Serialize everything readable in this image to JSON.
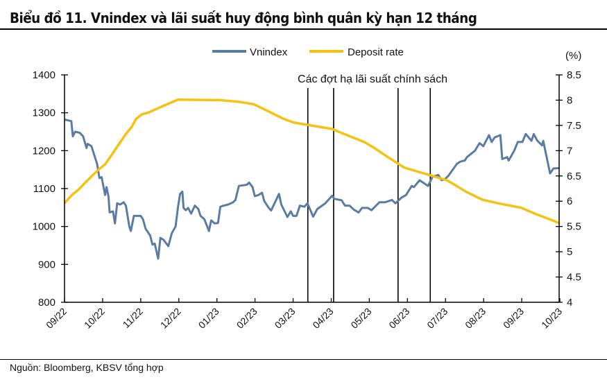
{
  "title": "Biểu đồ 11. Vnindex và lãi suất huy động bình quân kỳ hạn 12 tháng",
  "footer": "Nguồn: Bloomberg, KBSV tổng hợp",
  "chart_data": {
    "type": "line",
    "title": "Biểu đồ 11. Vnindex và lãi suất huy động bình quân kỳ hạn 12 tháng",
    "x_unit": "months since start of 09/2022",
    "xlim": [
      0,
      13.05
    ],
    "x_tick_labels": [
      "09/22",
      "10/22",
      "11/22",
      "12/22",
      "01/23",
      "02/23",
      "03/23",
      "04/23",
      "05/23",
      "06/23",
      "07/23",
      "08/23",
      "09/23",
      "10/23"
    ],
    "y_left": {
      "ylim": [
        800,
        1400
      ],
      "ticks": [
        800,
        900,
        1000,
        1100,
        1200,
        1300,
        1400
      ]
    },
    "y_right": {
      "label": "(%)",
      "ylim": [
        4,
        8.5
      ],
      "ticks": [
        "4",
        "4.5",
        "5",
        "5.5",
        "6",
        "6.5",
        "7",
        "7.5",
        "8",
        "8.5"
      ]
    },
    "legend": {
      "placement": "top-center",
      "entries": [
        "Vnindex",
        "Deposit rate"
      ]
    },
    "colors": {
      "Vnindex": "#5a7ca3",
      "Deposit rate": "#f5c211"
    },
    "annotation": {
      "text": "Các đợt hạ lãi suất chính sách",
      "policy_cut_x": [
        6.42,
        7.1,
        8.8,
        9.65
      ]
    },
    "series": [
      {
        "name": "Vnindex",
        "axis": "left",
        "points": [
          [
            0.01,
            1282
          ],
          [
            0.18,
            1278
          ],
          [
            0.22,
            1238
          ],
          [
            0.28,
            1250
          ],
          [
            0.4,
            1247
          ],
          [
            0.49,
            1238
          ],
          [
            0.58,
            1207
          ],
          [
            0.61,
            1218
          ],
          [
            0.71,
            1212
          ],
          [
            0.86,
            1165
          ],
          [
            0.92,
            1128
          ],
          [
            0.98,
            1130
          ],
          [
            1.07,
            1083
          ],
          [
            1.11,
            1104
          ],
          [
            1.16,
            1079
          ],
          [
            1.19,
            1037
          ],
          [
            1.28,
            1040
          ],
          [
            1.33,
            1008
          ],
          [
            1.39,
            1061
          ],
          [
            1.47,
            1058
          ],
          [
            1.56,
            1064
          ],
          [
            1.62,
            1055
          ],
          [
            1.71,
            1000
          ],
          [
            1.75,
            988
          ],
          [
            1.83,
            1028
          ],
          [
            2.01,
            1028
          ],
          [
            2.07,
            1019
          ],
          [
            2.14,
            994
          ],
          [
            2.26,
            976
          ],
          [
            2.32,
            952
          ],
          [
            2.38,
            955
          ],
          [
            2.47,
            915
          ],
          [
            2.53,
            970
          ],
          [
            2.62,
            964
          ],
          [
            2.74,
            948
          ],
          [
            2.83,
            982
          ],
          [
            2.93,
            1000
          ],
          [
            2.99,
            1049
          ],
          [
            3.05,
            1086
          ],
          [
            3.11,
            1092
          ],
          [
            3.14,
            1049
          ],
          [
            3.2,
            1043
          ],
          [
            3.26,
            1049
          ],
          [
            3.34,
            1034
          ],
          [
            3.44,
            1055
          ],
          [
            3.53,
            1046
          ],
          [
            3.59,
            1028
          ],
          [
            3.69,
            1019
          ],
          [
            3.81,
            988
          ],
          [
            3.87,
            1016
          ],
          [
            3.96,
            1008
          ],
          [
            4.05,
            1009
          ],
          [
            4.11,
            1052
          ],
          [
            4.2,
            1055
          ],
          [
            4.32,
            1058
          ],
          [
            4.45,
            1064
          ],
          [
            4.51,
            1070
          ],
          [
            4.6,
            1107
          ],
          [
            4.81,
            1110
          ],
          [
            4.87,
            1116
          ],
          [
            4.96,
            1104
          ],
          [
            5.02,
            1080
          ],
          [
            5.12,
            1083
          ],
          [
            5.21,
            1089
          ],
          [
            5.27,
            1067
          ],
          [
            5.39,
            1049
          ],
          [
            5.45,
            1042
          ],
          [
            5.66,
            1086
          ],
          [
            5.72,
            1058
          ],
          [
            5.88,
            1025
          ],
          [
            5.97,
            1040
          ],
          [
            6.03,
            1028
          ],
          [
            6.12,
            1028
          ],
          [
            6.21,
            1055
          ],
          [
            6.33,
            1052
          ],
          [
            6.41,
            1061
          ],
          [
            6.56,
            1026
          ],
          [
            6.67,
            1046
          ],
          [
            6.88,
            1061
          ],
          [
            7.06,
            1081
          ],
          [
            7.12,
            1073
          ],
          [
            7.31,
            1069
          ],
          [
            7.4,
            1055
          ],
          [
            7.52,
            1055
          ],
          [
            7.64,
            1044
          ],
          [
            7.76,
            1037
          ],
          [
            7.85,
            1049
          ],
          [
            8.0,
            1049
          ],
          [
            8.1,
            1043
          ],
          [
            8.31,
            1064
          ],
          [
            8.46,
            1064
          ],
          [
            8.64,
            1070
          ],
          [
            8.73,
            1061
          ],
          [
            8.89,
            1076
          ],
          [
            9.01,
            1083
          ],
          [
            9.16,
            1107
          ],
          [
            9.22,
            1104
          ],
          [
            9.37,
            1122
          ],
          [
            9.59,
            1107
          ],
          [
            9.71,
            1131
          ],
          [
            9.86,
            1136
          ],
          [
            9.95,
            1122
          ],
          [
            10.04,
            1125
          ],
          [
            10.13,
            1134
          ],
          [
            10.35,
            1165
          ],
          [
            10.44,
            1171
          ],
          [
            10.56,
            1174
          ],
          [
            10.62,
            1183
          ],
          [
            10.83,
            1200
          ],
          [
            10.95,
            1220
          ],
          [
            11.05,
            1212
          ],
          [
            11.2,
            1241
          ],
          [
            11.27,
            1223
          ],
          [
            11.35,
            1235
          ],
          [
            11.5,
            1241
          ],
          [
            11.55,
            1178
          ],
          [
            11.68,
            1183
          ],
          [
            11.72,
            1174
          ],
          [
            11.87,
            1201
          ],
          [
            11.96,
            1223
          ],
          [
            12.08,
            1223
          ],
          [
            12.17,
            1244
          ],
          [
            12.32,
            1226
          ],
          [
            12.38,
            1244
          ],
          [
            12.47,
            1227
          ],
          [
            12.6,
            1214
          ],
          [
            12.63,
            1226
          ],
          [
            12.81,
            1140
          ],
          [
            12.9,
            1153
          ],
          [
            13.05,
            1154
          ]
        ]
      },
      {
        "name": "Deposit rate",
        "axis": "right",
        "points": [
          [
            0.0,
            5.96
          ],
          [
            0.19,
            6.12
          ],
          [
            0.37,
            6.23
          ],
          [
            0.55,
            6.37
          ],
          [
            0.74,
            6.51
          ],
          [
            0.92,
            6.64
          ],
          [
            1.07,
            6.73
          ],
          [
            1.22,
            6.89
          ],
          [
            1.41,
            7.1
          ],
          [
            1.62,
            7.33
          ],
          [
            1.77,
            7.47
          ],
          [
            1.89,
            7.63
          ],
          [
            2.04,
            7.72
          ],
          [
            2.23,
            7.76
          ],
          [
            2.44,
            7.83
          ],
          [
            2.62,
            7.89
          ],
          [
            2.99,
            8.01
          ],
          [
            4.08,
            8.0
          ],
          [
            4.57,
            7.97
          ],
          [
            4.99,
            7.92
          ],
          [
            5.24,
            7.83
          ],
          [
            5.54,
            7.72
          ],
          [
            5.78,
            7.63
          ],
          [
            6.03,
            7.56
          ],
          [
            6.33,
            7.52
          ],
          [
            7.06,
            7.43
          ],
          [
            7.31,
            7.35
          ],
          [
            7.91,
            7.17
          ],
          [
            8.16,
            7.06
          ],
          [
            8.58,
            6.85
          ],
          [
            8.95,
            6.67
          ],
          [
            9.25,
            6.6
          ],
          [
            9.62,
            6.52
          ],
          [
            10.1,
            6.41
          ],
          [
            10.59,
            6.19
          ],
          [
            11.02,
            6.03
          ],
          [
            11.5,
            5.95
          ],
          [
            12.05,
            5.87
          ],
          [
            12.42,
            5.75
          ],
          [
            13.05,
            5.57
          ]
        ]
      }
    ]
  }
}
